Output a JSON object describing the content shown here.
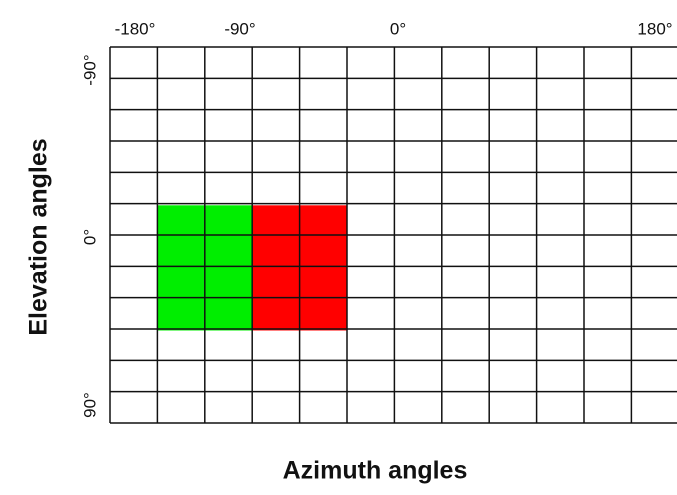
{
  "x_axis": {
    "title": "Azimuth angles",
    "labels": [
      "-180°",
      "-90°",
      "0°",
      "180°"
    ]
  },
  "y_axis": {
    "title": "Elevation angles",
    "labels": [
      "-90°",
      "0°",
      "90°"
    ]
  }
}
